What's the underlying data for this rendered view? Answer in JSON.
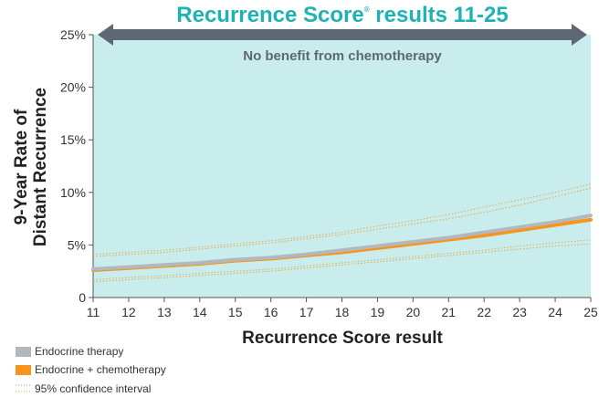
{
  "header": {
    "title_main": "Recurrence Score",
    "title_reg": "®",
    "title_rest": " results 11-25",
    "banner_text": "No benefit from chemotherapy"
  },
  "colors": {
    "title": "#1fb2b5",
    "plot_background": "#c9ecec",
    "banner_arrow": "#5d6873",
    "endocrine": "#b3b8bd",
    "chemo": "#f7941d",
    "ci": "#e8a840"
  },
  "chart_data": {
    "type": "line",
    "title": "Recurrence Score® results 11-25",
    "xlabel": "Recurrence Score result",
    "ylabel_lines": [
      "9-Year Rate of",
      "Distant Recurrence"
    ],
    "xlim": [
      11,
      25
    ],
    "ylim": [
      0,
      25
    ],
    "x_ticks": [
      "11",
      "12",
      "13",
      "14",
      "15",
      "16",
      "17",
      "18",
      "19",
      "20",
      "21",
      "22",
      "23",
      "24",
      "25"
    ],
    "y_ticks": [
      {
        "value": 0,
        "label": "0"
      },
      {
        "value": 5,
        "label": "5%"
      },
      {
        "value": 10,
        "label": "10%"
      },
      {
        "value": 15,
        "label": "15%"
      },
      {
        "value": 20,
        "label": "20%"
      },
      {
        "value": 25,
        "label": "25%"
      }
    ],
    "grid": false,
    "annotation": "No benefit from chemotherapy",
    "x": [
      11,
      12,
      13,
      14,
      15,
      16,
      17,
      18,
      19,
      20,
      21,
      22,
      23,
      24,
      25
    ],
    "series": [
      {
        "name": "Endocrine therapy",
        "kind": "line",
        "color_key": "endocrine",
        "values": [
          2.7,
          2.9,
          3.1,
          3.3,
          3.6,
          3.8,
          4.1,
          4.5,
          4.9,
          5.3,
          5.7,
          6.2,
          6.7,
          7.2,
          7.8
        ]
      },
      {
        "name": "Endocrine + chemotherapy",
        "kind": "line",
        "color_key": "chemo",
        "values": [
          2.6,
          2.8,
          3.0,
          3.2,
          3.5,
          3.7,
          4.0,
          4.3,
          4.7,
          5.1,
          5.5,
          5.9,
          6.4,
          6.9,
          7.4
        ]
      },
      {
        "name": "Endocrine therapy 95% CI upper",
        "kind": "ci",
        "values": [
          4.1,
          4.3,
          4.5,
          4.8,
          5.1,
          5.4,
          5.8,
          6.2,
          6.8,
          7.3,
          7.9,
          8.6,
          9.3,
          10.0,
          10.8
        ]
      },
      {
        "name": "Endocrine + chemotherapy 95% CI upper",
        "kind": "ci",
        "values": [
          3.9,
          4.1,
          4.3,
          4.6,
          4.9,
          5.2,
          5.6,
          6.0,
          6.5,
          7.0,
          7.5,
          8.1,
          8.8,
          9.6,
          10.4
        ]
      },
      {
        "name": "Endocrine therapy 95% CI lower",
        "kind": "ci",
        "values": [
          1.7,
          1.9,
          2.1,
          2.3,
          2.5,
          2.7,
          3.0,
          3.3,
          3.6,
          3.9,
          4.2,
          4.5,
          4.9,
          5.2,
          5.5
        ]
      },
      {
        "name": "Endocrine + chemotherapy 95% CI lower",
        "kind": "ci",
        "values": [
          1.5,
          1.7,
          1.9,
          2.1,
          2.3,
          2.5,
          2.8,
          3.1,
          3.4,
          3.7,
          4.0,
          4.3,
          4.6,
          4.9,
          5.1
        ]
      }
    ],
    "legend": {
      "placement": "bottom-left",
      "items": [
        {
          "label": "Endocrine therapy",
          "swatch": "bar",
          "color_key": "endocrine"
        },
        {
          "label": "Endocrine + chemotherapy",
          "swatch": "bar",
          "color_key": "chemo"
        },
        {
          "label": "95% confidence interval",
          "swatch": "dotted",
          "color_key": "ci"
        }
      ]
    }
  }
}
